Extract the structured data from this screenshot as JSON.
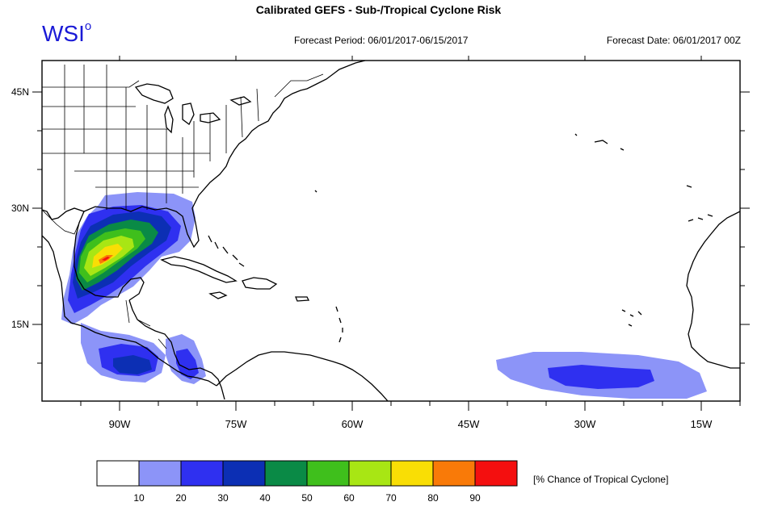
{
  "header": {
    "title": "Calibrated GEFS - Sub-/Tropical Cyclone Risk",
    "logo_text": "WSI",
    "logo_mark": "o",
    "forecast_period": "Forecast Period: 06/01/2017-06/15/2017",
    "forecast_date": "Forecast Date: 06/01/2017 00Z"
  },
  "map": {
    "lat_labels": [
      "45N",
      "30N",
      "15N"
    ],
    "lon_labels": [
      "90W",
      "75W",
      "60W",
      "45W",
      "30W",
      "15W"
    ],
    "colors": {
      "coast": "#000000",
      "border": "#000000",
      "frame": "#000000"
    }
  },
  "legend": {
    "title": "[% Chance of Tropical Cyclone]",
    "ticks": [
      "10",
      "20",
      "30",
      "40",
      "50",
      "60",
      "70",
      "80",
      "90"
    ],
    "colors": [
      "#ffffff",
      "#8c94f8",
      "#2f30f0",
      "#0c2fb4",
      "#0a8a46",
      "#3fbf1c",
      "#a8e614",
      "#f9de05",
      "#f97a08",
      "#f40f0f"
    ]
  }
}
